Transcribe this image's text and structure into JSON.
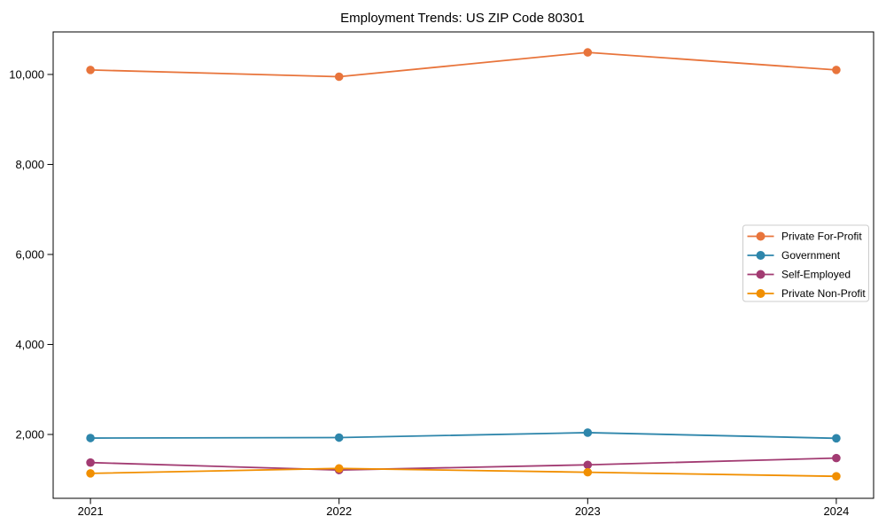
{
  "window": {
    "background": "#ffffff"
  },
  "chart_data": {
    "type": "line",
    "title": "Employment Trends: US ZIP Code 80301",
    "xlabel": "",
    "ylabel": "",
    "x": [
      2021,
      2022,
      2023,
      2024
    ],
    "xtick_labels": [
      "2021",
      "2022",
      "2023",
      "2024"
    ],
    "yticks": [
      {
        "value": 2000,
        "label": "2,000"
      },
      {
        "value": 4000,
        "label": "4,000"
      },
      {
        "value": 6000,
        "label": "6,000"
      },
      {
        "value": 8000,
        "label": "8,000"
      },
      {
        "value": 10000,
        "label": "10,000"
      }
    ],
    "xlim": [
      2020.85,
      2024.15
    ],
    "ylim": [
      581,
      10945
    ],
    "grid": false,
    "legend_position": "center-right",
    "axis_color": "#000000",
    "legend_border_color": "#cccccc",
    "series": [
      {
        "name": "Private For-Profit",
        "color": "#E8743B",
        "values": [
          10100,
          9950,
          10490,
          10100
        ]
      },
      {
        "name": "Government",
        "color": "#2E86AB",
        "values": [
          1920,
          1930,
          2040,
          1915
        ]
      },
      {
        "name": "Self-Employed",
        "color": "#A23B72",
        "values": [
          1375,
          1210,
          1325,
          1475
        ]
      },
      {
        "name": "Private Non-Profit",
        "color": "#F18F01",
        "values": [
          1135,
          1245,
          1160,
          1070
        ]
      }
    ]
  }
}
